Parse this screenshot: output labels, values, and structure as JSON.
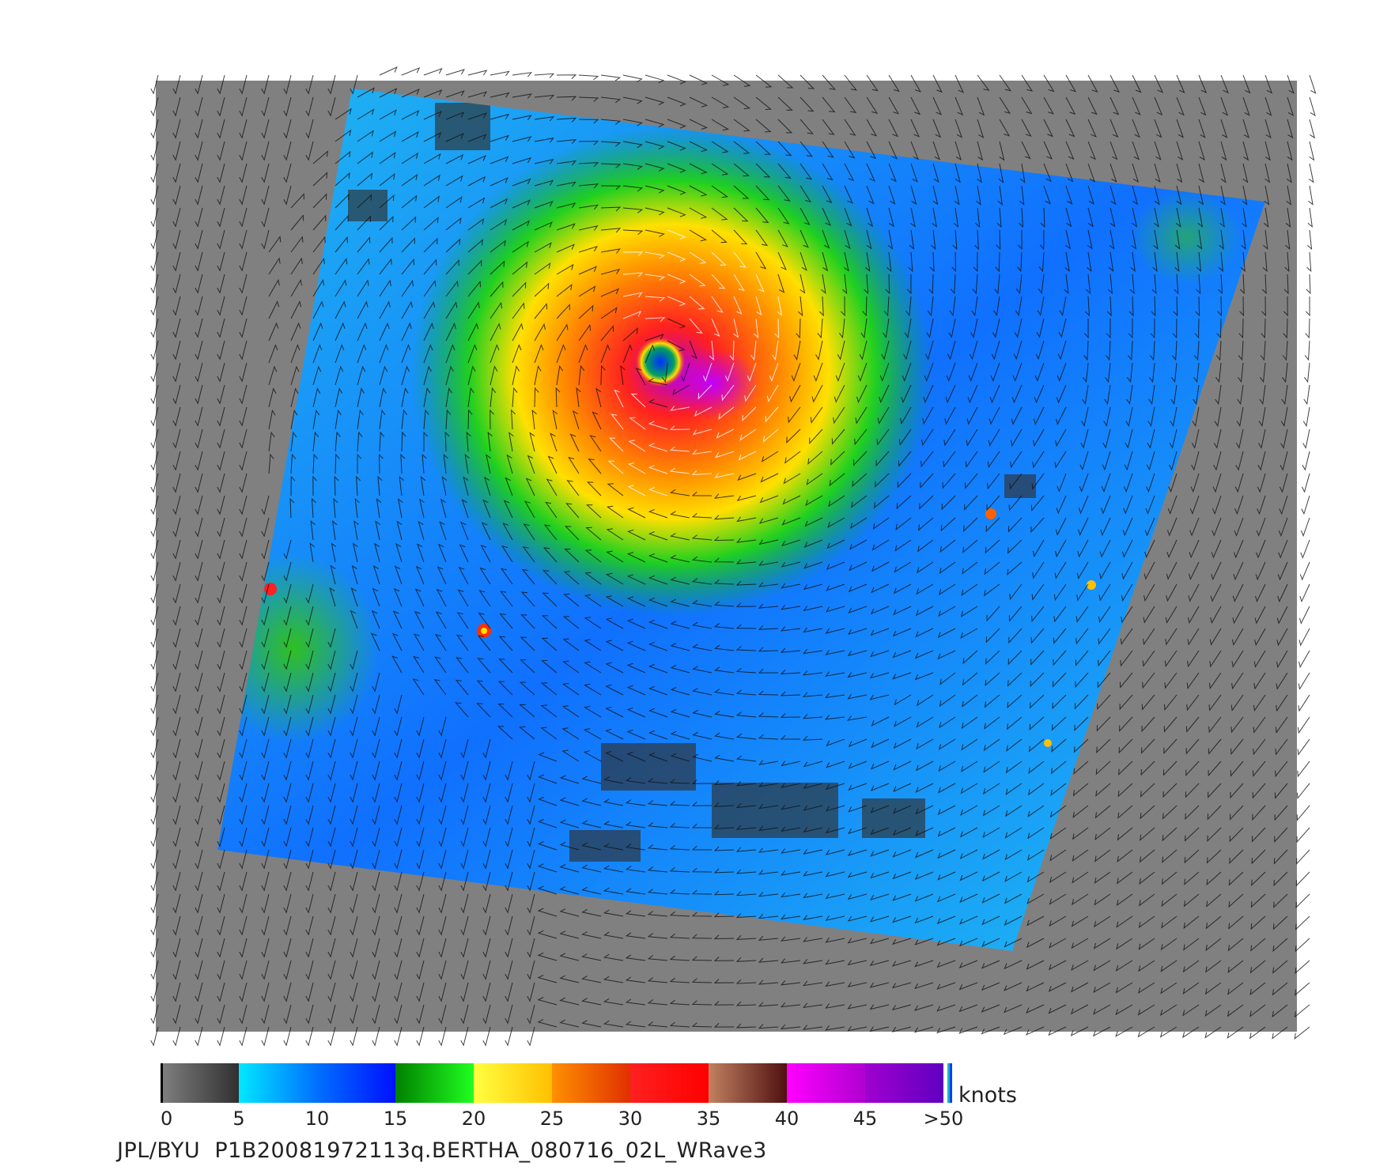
{
  "footer_text": "JPL/BYU  P1B20081972113q.BERTHA_080716_02L_WRave3",
  "colorbar": {
    "units": "knots",
    "ticks": [
      "0",
      "5",
      "10",
      "15",
      "20",
      "25",
      "30",
      "35",
      "40",
      "45",
      ">50"
    ],
    "segments": [
      {
        "from": 0,
        "to": 5,
        "c1": "#808080",
        "c2": "#303030"
      },
      {
        "from": 5,
        "to": 10,
        "c1": "#00e8ff",
        "c2": "#0070ff"
      },
      {
        "from": 10,
        "to": 15,
        "c1": "#0070ff",
        "c2": "#0010ff"
      },
      {
        "from": 15,
        "to": 20,
        "c1": "#008000",
        "c2": "#20ff20"
      },
      {
        "from": 20,
        "to": 25,
        "c1": "#ffff40",
        "c2": "#ffc000"
      },
      {
        "from": 25,
        "to": 30,
        "c1": "#ff9000",
        "c2": "#e03000"
      },
      {
        "from": 30,
        "to": 35,
        "c1": "#ff2020",
        "c2": "#ff0000"
      },
      {
        "from": 35,
        "to": 40,
        "c1": "#c08060",
        "c2": "#501010"
      },
      {
        "from": 40,
        "to": 45,
        "c1": "#ff00ff",
        "c2": "#b000d0"
      },
      {
        "from": 45,
        "to": 50,
        "c1": "#a000d0",
        "c2": "#6000c0"
      }
    ]
  },
  "colors": {
    "land_background": "#808080",
    "barb_color": "#111111",
    "high_wind_barb_color": "#ffffff"
  }
}
